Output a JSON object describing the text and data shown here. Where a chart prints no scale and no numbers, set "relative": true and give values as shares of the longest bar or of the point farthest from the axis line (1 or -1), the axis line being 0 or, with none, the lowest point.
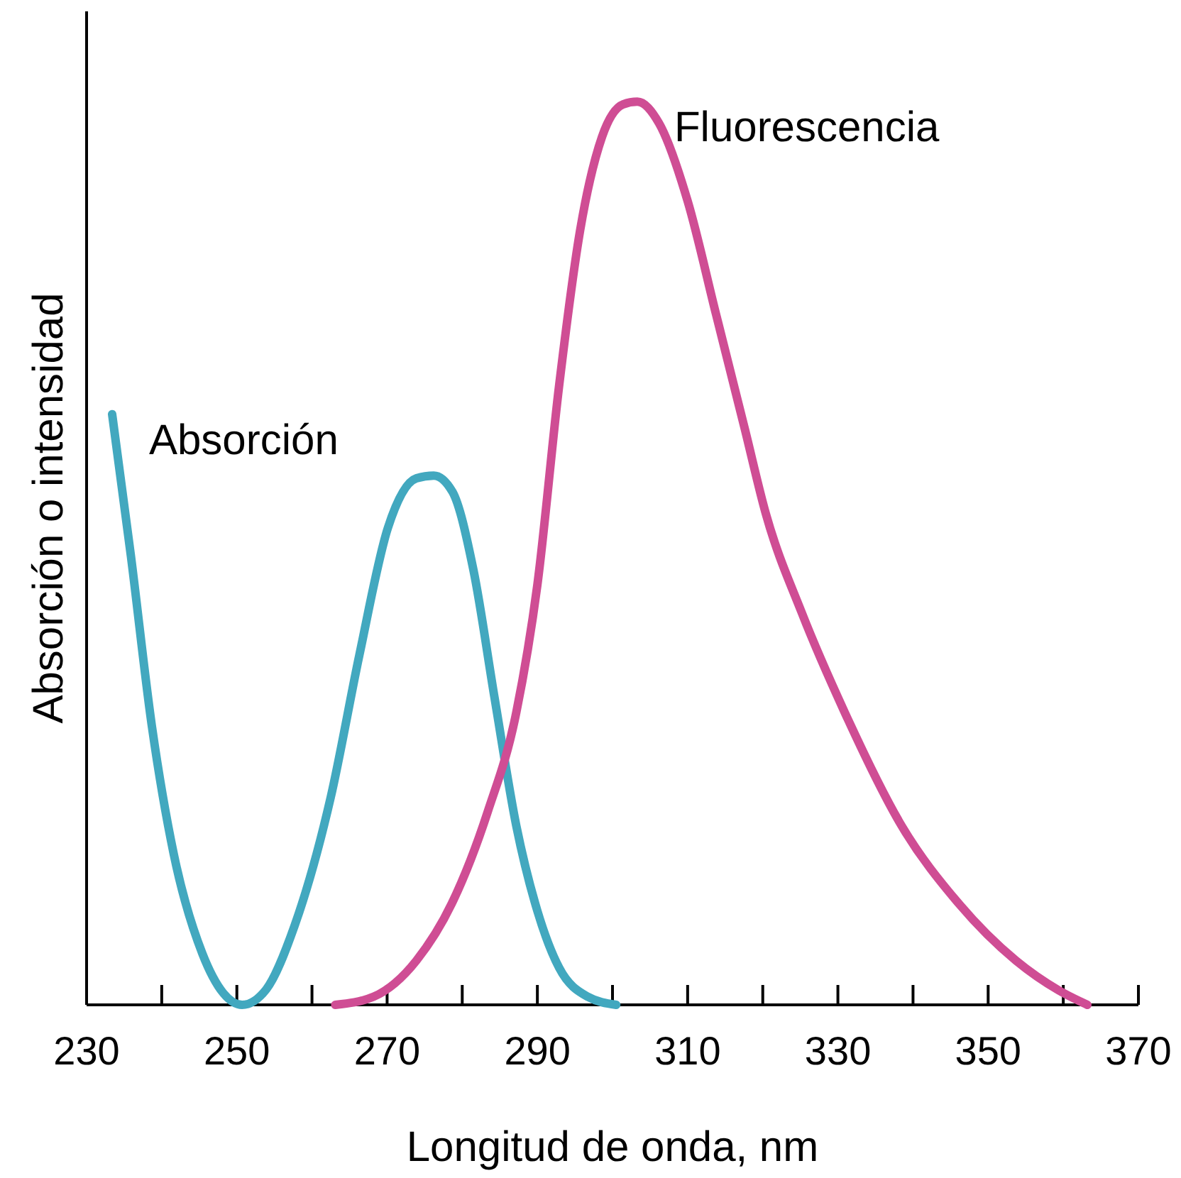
{
  "chart_data": {
    "type": "line",
    "relative": true,
    "xlabel": "Longitud de onda, nm",
    "ylabel": "Absorción o intensidad",
    "xlim": [
      230,
      370
    ],
    "xticks": [
      230,
      {
        "value": 240,
        "label": null
      },
      250,
      {
        "value": 260,
        "label": null
      },
      270,
      {
        "value": 280,
        "label": null
      },
      290,
      {
        "value": 300,
        "label": null
      },
      310,
      {
        "value": 320,
        "label": null
      },
      330,
      {
        "value": 340,
        "label": null
      },
      350,
      {
        "value": 360,
        "label": null
      },
      370
    ],
    "grid": false,
    "legend": false,
    "marker": "none",
    "line_style": "solid",
    "series": [
      {
        "name": "Absorción",
        "color": "#42a8bf",
        "x": [
          233.4,
          235.9,
          238.7,
          241.6,
          245.4,
          248.2,
          250.7,
          253.9,
          257.7,
          262.5,
          266.3,
          270.1,
          273.9,
          276.2,
          278.7,
          281.5,
          284.3,
          287.2,
          290.0,
          292.9,
          296.7,
          300.5
        ],
        "values": [
          0.654,
          0.497,
          0.308,
          0.167,
          0.057,
          0.013,
          0,
          0.017,
          0.088,
          0.23,
          0.387,
          0.528,
          0.583,
          0.586,
          0.568,
          0.481,
          0.34,
          0.198,
          0.104,
          0.041,
          0.009,
          0
        ]
      },
      {
        "name": "Fluorescencia",
        "color": "#cf4d94",
        "x": [
          263.1,
          268.2,
          273.9,
          278.6,
          283.4,
          287.2,
          290.0,
          292.9,
          295.7,
          298.6,
          301.4,
          303.3,
          306.2,
          310.0,
          313.8,
          317.6,
          320.4,
          325.2,
          330.9,
          338.5,
          346.1,
          353.7,
          359.4,
          363.2
        ],
        "values": [
          0,
          0.009,
          0.049,
          0.112,
          0.214,
          0.324,
          0.465,
          0.686,
          0.858,
          0.961,
          0.997,
          1,
          0.976,
          0.89,
          0.764,
          0.638,
          0.544,
          0.434,
          0.324,
          0.198,
          0.112,
          0.049,
          0.016,
          0
        ]
      }
    ]
  }
}
